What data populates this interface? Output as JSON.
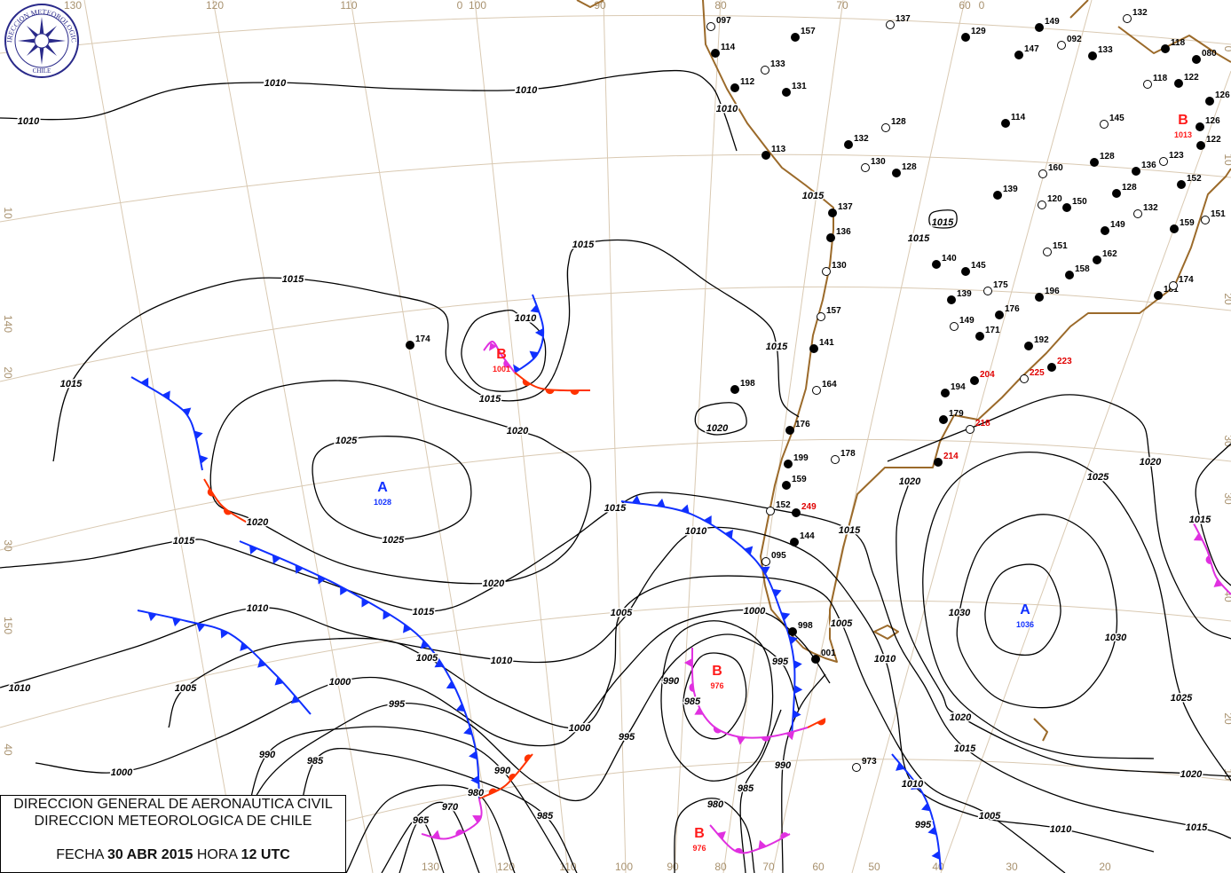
{
  "logo": {
    "text_top": "DIRECCION METEOROLOGICA",
    "text_bottom": "CHILE",
    "color": "#2a2a8a"
  },
  "caption": {
    "line1": "DIRECCION GENERAL DE AERONAUTICA CIVIL",
    "line2": "DIRECCION METEOROLOGICA DE CHILE",
    "date_prefix": "FECHA",
    "date": "30 ABR 2015",
    "time_prefix": "HORA",
    "time": "12 UTC"
  },
  "colors": {
    "isobar": "#000000",
    "cold_front": "#1030ff",
    "warm_front": "#ff3300",
    "occluded_front": "#e030e0",
    "coastline": "#9b6a2a",
    "high": "#1030ff",
    "low": "#ff1a1a",
    "graticule": "#d9c9b2"
  },
  "graticule_labels": {
    "top": [
      "130",
      "120",
      "110",
      "0",
      "100",
      "90",
      "80",
      "70",
      "60",
      "0"
    ],
    "bottom": [
      "130",
      "120",
      "110",
      "100",
      "90",
      "80",
      "70",
      "60",
      "50",
      "40",
      "30",
      "20"
    ],
    "left": [
      "10",
      "140",
      "20",
      "30",
      "150",
      "40"
    ],
    "right": [
      "0",
      "10",
      "20",
      "30",
      "30",
      "40",
      "20",
      "10"
    ]
  },
  "pressure_centers": [
    {
      "type": "low",
      "letter": "B",
      "value": "1001"
    },
    {
      "type": "high",
      "letter": "A",
      "value": "1028"
    },
    {
      "type": "low",
      "letter": "B",
      "value": "976"
    },
    {
      "type": "low",
      "letter": "B",
      "value": "976"
    },
    {
      "type": "high",
      "letter": "A",
      "value": "1036"
    },
    {
      "type": "low",
      "letter": "B",
      "value": "1013"
    }
  ],
  "isobar_labels": [
    "1010",
    "1010",
    "1010",
    "1015",
    "1015",
    "1015",
    "1010",
    "1015",
    "1020",
    "1025",
    "1025",
    "1020",
    "1020",
    "1015",
    "1020",
    "1015",
    "1010",
    "1005",
    "1010",
    "1000",
    "995",
    "1005",
    "1010",
    "990",
    "985",
    "1000",
    "1000",
    "995",
    "990",
    "985",
    "980",
    "970",
    "965",
    "1005",
    "1000",
    "995",
    "990",
    "985",
    "980",
    "985",
    "990",
    "1005",
    "1010",
    "1015",
    "1020",
    "1025",
    "1020",
    "1030",
    "1030",
    "1025",
    "1020",
    "1015",
    "1010",
    "1005",
    "1010",
    "995",
    "1020",
    "1015",
    "1015",
    "1015",
    "1010",
    "1015",
    "1015",
    "1015",
    "1010",
    "1015"
  ],
  "stations": [
    {
      "id": "097"
    },
    {
      "id": "114"
    },
    {
      "id": "157"
    },
    {
      "id": "133"
    },
    {
      "id": "112"
    },
    {
      "id": "131"
    },
    {
      "id": "137"
    },
    {
      "id": "129"
    },
    {
      "id": "149"
    },
    {
      "id": "092"
    },
    {
      "id": "147"
    },
    {
      "id": "133"
    },
    {
      "id": "132"
    },
    {
      "id": "118"
    },
    {
      "id": "080"
    },
    {
      "id": "118"
    },
    {
      "id": "122"
    },
    {
      "id": "126"
    },
    {
      "id": "128"
    },
    {
      "id": "132"
    },
    {
      "id": "113"
    },
    {
      "id": "130"
    },
    {
      "id": "128"
    },
    {
      "id": "114"
    },
    {
      "id": "145"
    },
    {
      "id": "126"
    },
    {
      "id": "122"
    },
    {
      "id": "160"
    },
    {
      "id": "128"
    },
    {
      "id": "136"
    },
    {
      "id": "123"
    },
    {
      "id": "152"
    },
    {
      "id": "139"
    },
    {
      "id": "120"
    },
    {
      "id": "150"
    },
    {
      "id": "128"
    },
    {
      "id": "132"
    },
    {
      "id": "149"
    },
    {
      "id": "159"
    },
    {
      "id": "151"
    },
    {
      "id": "137"
    },
    {
      "id": "136"
    },
    {
      "id": "130"
    },
    {
      "id": "140"
    },
    {
      "id": "145"
    },
    {
      "id": "151"
    },
    {
      "id": "162"
    },
    {
      "id": "158"
    },
    {
      "id": "175"
    },
    {
      "id": "196"
    },
    {
      "id": "181"
    },
    {
      "id": "174"
    },
    {
      "id": "139"
    },
    {
      "id": "176"
    },
    {
      "id": "149"
    },
    {
      "id": "171"
    },
    {
      "id": "192"
    },
    {
      "id": "157"
    },
    {
      "id": "141"
    },
    {
      "id": "198"
    },
    {
      "id": "164"
    },
    {
      "id": "204",
      "color": "#e00000"
    },
    {
      "id": "194"
    },
    {
      "id": "225",
      "color": "#e00000"
    },
    {
      "id": "223",
      "color": "#e00000"
    },
    {
      "id": "179"
    },
    {
      "id": "218",
      "color": "#e00000"
    },
    {
      "id": "176"
    },
    {
      "id": "199"
    },
    {
      "id": "178"
    },
    {
      "id": "214",
      "color": "#e00000"
    },
    {
      "id": "159"
    },
    {
      "id": "152"
    },
    {
      "id": "249",
      "color": "#e00000"
    },
    {
      "id": "144"
    },
    {
      "id": "095"
    },
    {
      "id": "998"
    },
    {
      "id": "001"
    },
    {
      "id": "973"
    },
    {
      "id": "174"
    }
  ]
}
